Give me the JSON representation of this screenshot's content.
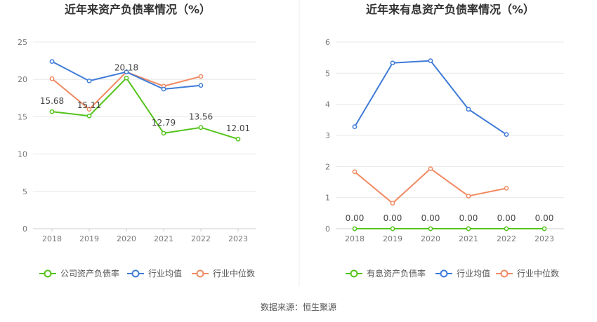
{
  "chart_data": [
    {
      "type": "line",
      "title": "近年来资产负债率情况（%）",
      "categories": [
        "2018",
        "2019",
        "2020",
        "2021",
        "2022",
        "2023"
      ],
      "ylim": [
        0,
        25
      ],
      "yticks": [
        0,
        5,
        10,
        15,
        20,
        25
      ],
      "grid": true,
      "legend_position": "bottom",
      "series": [
        {
          "name": "公司资产负债率",
          "color": "#52c41a",
          "values": [
            15.68,
            15.11,
            20.18,
            12.79,
            13.56,
            12.01
          ],
          "labels": [
            "15.68",
            "15.11",
            "20.18",
            "12.79",
            "13.56",
            "12.01"
          ]
        },
        {
          "name": "行业均值",
          "color": "#3e7bd8",
          "values": [
            22.4,
            19.8,
            21.0,
            18.7,
            19.2,
            null
          ]
        },
        {
          "name": "行业中位数",
          "color": "#f08a62",
          "values": [
            20.1,
            16.0,
            21.0,
            19.1,
            20.4,
            null
          ]
        }
      ]
    },
    {
      "type": "line",
      "title": "近年来有息资产负债率情况（%）",
      "categories": [
        "2018",
        "2019",
        "2020",
        "2021",
        "2022",
        "2023"
      ],
      "ylim": [
        0,
        6
      ],
      "yticks": [
        0,
        1,
        2,
        3,
        4,
        5,
        6
      ],
      "grid": true,
      "legend_position": "bottom",
      "series": [
        {
          "name": "有息资产负债率",
          "color": "#52c41a",
          "values": [
            0,
            0,
            0,
            0,
            0,
            0
          ],
          "labels": [
            "0.00",
            "0.00",
            "0.00",
            "0.00",
            "0.00",
            "0.00"
          ]
        },
        {
          "name": "行业均值",
          "color": "#3e7bd8",
          "values": [
            3.28,
            5.33,
            5.4,
            3.84,
            3.03,
            null
          ]
        },
        {
          "name": "行业中位数",
          "color": "#f08a62",
          "values": [
            1.83,
            0.82,
            1.93,
            1.05,
            1.3,
            null
          ]
        }
      ]
    }
  ],
  "footer": {
    "source": "数据来源：恒生聚源"
  }
}
